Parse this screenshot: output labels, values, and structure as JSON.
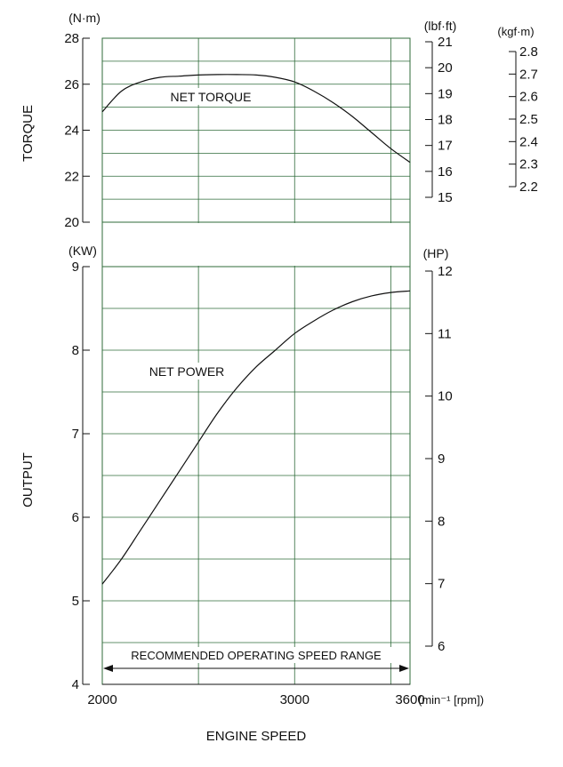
{
  "chart_data": [
    {
      "type": "line",
      "title": "",
      "ylabel": "TORQUE",
      "xlabel": "ENGINE SPEED",
      "x_unit": "(min⁻¹ [rpm])",
      "xlim": [
        2000,
        3600
      ],
      "x_ticks": [
        "2000",
        "3000",
        "3600"
      ],
      "ylim": [
        20,
        28
      ],
      "y_unit_left": "(N·m)",
      "y_ticks_left": [
        "20",
        "22",
        "24",
        "26",
        "28"
      ],
      "y_unit_right": "(lbf·ft)",
      "y_ticks_right": [
        "15",
        "16",
        "17",
        "18",
        "19",
        "20",
        "21"
      ],
      "y_unit_right2": "(kgf·m)",
      "y_ticks_right2": [
        "2.2",
        "2.3",
        "2.4",
        "2.5",
        "2.6",
        "2.7",
        "2.8"
      ],
      "grid": true,
      "series": [
        {
          "name": "NET TORQUE",
          "x": [
            2000,
            2100,
            2200,
            2300,
            2400,
            2500,
            2600,
            2700,
            2800,
            2900,
            3000,
            3100,
            3200,
            3300,
            3400,
            3500,
            3600
          ],
          "y": [
            24.8,
            25.7,
            26.1,
            26.3,
            26.35,
            26.4,
            26.42,
            26.42,
            26.4,
            26.3,
            26.1,
            25.7,
            25.2,
            24.6,
            23.9,
            23.2,
            22.6
          ]
        }
      ]
    },
    {
      "type": "line",
      "title": "",
      "ylabel": "OUTPUT",
      "xlabel": "ENGINE SPEED",
      "xlim": [
        2000,
        3600
      ],
      "ylim": [
        4,
        9
      ],
      "y_unit_left": "(KW)",
      "y_ticks_left": [
        "4",
        "5",
        "6",
        "7",
        "8",
        "9"
      ],
      "y_unit_right": "(HP)",
      "y_ticks_right": [
        "6",
        "7",
        "8",
        "9",
        "10",
        "11",
        "12"
      ],
      "grid": true,
      "series": [
        {
          "name": "NET POWER",
          "x": [
            2000,
            2100,
            2200,
            2300,
            2400,
            2500,
            2600,
            2700,
            2800,
            2900,
            3000,
            3100,
            3200,
            3300,
            3400,
            3500,
            3600
          ],
          "y": [
            5.2,
            5.5,
            5.85,
            6.2,
            6.55,
            6.9,
            7.25,
            7.55,
            7.8,
            8.0,
            8.2,
            8.35,
            8.48,
            8.58,
            8.65,
            8.69,
            8.71
          ]
        }
      ],
      "annotation": "RECOMMENDED OPERATING SPEED RANGE"
    }
  ]
}
